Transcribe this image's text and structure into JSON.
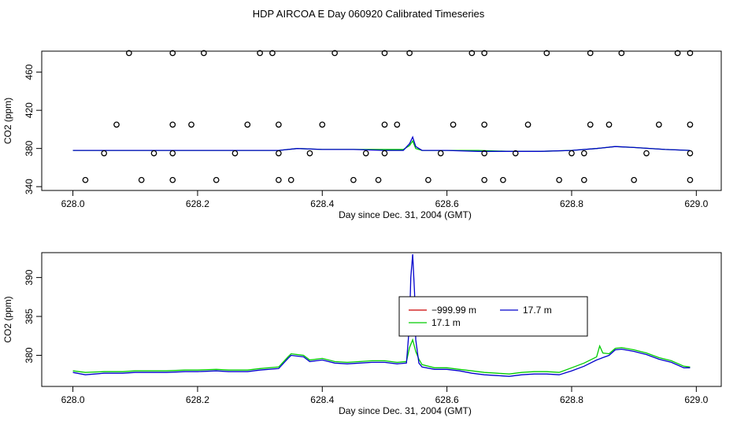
{
  "figure": {
    "title": "HDP AIRCOA E  Day 060920  Calibrated Timeseries"
  },
  "chart_data": [
    {
      "type": "scatter",
      "title": "",
      "xlabel": "Day since Dec. 31, 2004 (GMT)",
      "ylabel": "CO2 (ppm)",
      "xlim": [
        627.95,
        629.04
      ],
      "ylim": [
        336,
        482
      ],
      "xticks": [
        "628.0",
        "628.2",
        "628.4",
        "628.6",
        "628.8",
        "629.0"
      ],
      "xtick_values": [
        628.0,
        628.2,
        628.4,
        628.6,
        628.8,
        629.0
      ],
      "yticks": [
        "340",
        "380",
        "420",
        "460"
      ],
      "ytick_values": [
        340,
        380,
        420,
        460
      ],
      "points": [
        [
          628.09,
          480
        ],
        [
          628.16,
          480
        ],
        [
          628.21,
          480
        ],
        [
          628.3,
          480
        ],
        [
          628.32,
          480
        ],
        [
          628.42,
          480
        ],
        [
          628.5,
          480
        ],
        [
          628.54,
          480
        ],
        [
          628.64,
          480
        ],
        [
          628.66,
          480
        ],
        [
          628.76,
          480
        ],
        [
          628.83,
          480
        ],
        [
          628.88,
          480
        ],
        [
          628.97,
          480
        ],
        [
          628.99,
          480
        ],
        [
          628.07,
          405
        ],
        [
          628.16,
          405
        ],
        [
          628.19,
          405
        ],
        [
          628.28,
          405
        ],
        [
          628.33,
          405
        ],
        [
          628.4,
          405
        ],
        [
          628.5,
          405
        ],
        [
          628.52,
          405
        ],
        [
          628.61,
          405
        ],
        [
          628.66,
          405
        ],
        [
          628.73,
          405
        ],
        [
          628.83,
          405
        ],
        [
          628.86,
          405
        ],
        [
          628.94,
          405
        ],
        [
          628.99,
          405
        ],
        [
          628.05,
          375
        ],
        [
          628.13,
          375
        ],
        [
          628.16,
          375
        ],
        [
          628.26,
          375
        ],
        [
          628.33,
          375
        ],
        [
          628.38,
          375
        ],
        [
          628.47,
          375
        ],
        [
          628.5,
          375
        ],
        [
          628.59,
          375
        ],
        [
          628.66,
          375
        ],
        [
          628.71,
          375
        ],
        [
          628.8,
          375
        ],
        [
          628.82,
          375
        ],
        [
          628.92,
          375
        ],
        [
          628.99,
          375
        ],
        [
          628.02,
          347
        ],
        [
          628.11,
          347
        ],
        [
          628.16,
          347
        ],
        [
          628.23,
          347
        ],
        [
          628.33,
          347
        ],
        [
          628.35,
          347
        ],
        [
          628.45,
          347
        ],
        [
          628.49,
          347
        ],
        [
          628.57,
          347
        ],
        [
          628.66,
          347
        ],
        [
          628.69,
          347
        ],
        [
          628.78,
          347
        ],
        [
          628.82,
          347
        ],
        [
          628.9,
          347
        ],
        [
          628.99,
          347
        ]
      ],
      "series": [
        {
          "color": "#00cc00",
          "x": [
            628.0,
            628.05,
            628.1,
            628.15,
            628.2,
            628.25,
            628.3,
            628.33,
            628.36,
            628.4,
            628.45,
            628.5,
            628.53,
            628.54,
            628.545,
            628.55,
            628.56,
            628.6,
            628.65,
            628.7,
            628.75,
            628.8,
            628.84,
            628.87,
            628.9,
            628.95,
            628.99
          ],
          "y": [
            378,
            378,
            378,
            378,
            378,
            378,
            378,
            378,
            380,
            379,
            379,
            379,
            379,
            383,
            388,
            380,
            378,
            378,
            378,
            377,
            377,
            378,
            380,
            382,
            381,
            379,
            378
          ]
        },
        {
          "color": "#0000cc",
          "x": [
            628.0,
            628.05,
            628.1,
            628.15,
            628.2,
            628.25,
            628.3,
            628.33,
            628.36,
            628.4,
            628.45,
            628.5,
            628.53,
            628.54,
            628.545,
            628.55,
            628.56,
            628.6,
            628.65,
            628.7,
            628.75,
            628.8,
            628.84,
            628.87,
            628.9,
            628.95,
            628.99
          ],
          "y": [
            378,
            378,
            378,
            378,
            378,
            378,
            378,
            378,
            380,
            379,
            379,
            378,
            378,
            385,
            392,
            382,
            378,
            378,
            377,
            377,
            377,
            378,
            380,
            382,
            381,
            379,
            378
          ]
        }
      ]
    },
    {
      "type": "line",
      "title": "",
      "xlabel": "Day since Dec. 31, 2004 (GMT)",
      "ylabel": "CO2 (ppm)",
      "xlim": [
        627.95,
        629.04
      ],
      "ylim": [
        376.0,
        393.2
      ],
      "xticks": [
        "628.0",
        "628.2",
        "628.4",
        "628.6",
        "628.8",
        "629.0"
      ],
      "xtick_values": [
        628.0,
        628.2,
        628.4,
        628.6,
        628.8,
        629.0
      ],
      "yticks": [
        "380",
        "385",
        "390"
      ],
      "ytick_values": [
        380,
        385,
        390
      ],
      "legend": {
        "position": "center-right",
        "entries": [
          {
            "label": "−999.99 m",
            "color": "#cc0000"
          },
          {
            "label": "17.1 m",
            "color": "#00cc00"
          },
          {
            "label": "17.7 m",
            "color": "#0000cc"
          }
        ]
      },
      "series": [
        {
          "name": "17.1 m",
          "color": "#00cc00",
          "x": [
            628.0,
            628.02,
            628.05,
            628.08,
            628.1,
            628.13,
            628.15,
            628.18,
            628.2,
            628.23,
            628.25,
            628.28,
            628.3,
            628.33,
            628.345,
            628.35,
            628.37,
            628.38,
            628.4,
            628.42,
            628.44,
            628.46,
            628.48,
            628.5,
            628.52,
            628.535,
            628.54,
            628.545,
            628.55,
            628.555,
            628.56,
            628.58,
            628.6,
            628.62,
            628.64,
            628.66,
            628.68,
            628.7,
            628.72,
            628.74,
            628.76,
            628.78,
            628.8,
            628.82,
            628.84,
            628.845,
            628.85,
            628.86,
            628.87,
            628.88,
            628.9,
            628.92,
            628.94,
            628.96,
            628.98,
            628.99
          ],
          "y": [
            378.0,
            377.8,
            377.9,
            377.9,
            378.0,
            378.0,
            378.0,
            378.1,
            378.1,
            378.2,
            378.1,
            378.1,
            378.3,
            378.5,
            379.8,
            380.2,
            380.0,
            379.4,
            379.6,
            379.2,
            379.1,
            379.2,
            379.3,
            379.3,
            379.1,
            379.2,
            381.0,
            382.0,
            380.5,
            379.5,
            378.8,
            378.4,
            378.4,
            378.2,
            378.0,
            377.8,
            377.7,
            377.6,
            377.8,
            377.9,
            377.9,
            377.8,
            378.4,
            379.0,
            379.8,
            381.2,
            380.3,
            380.2,
            380.9,
            381.0,
            380.7,
            380.3,
            379.7,
            379.3,
            378.6,
            378.5
          ]
        },
        {
          "name": "17.7 m",
          "color": "#0000cc",
          "x": [
            628.0,
            628.02,
            628.05,
            628.08,
            628.1,
            628.13,
            628.15,
            628.18,
            628.2,
            628.23,
            628.25,
            628.28,
            628.3,
            628.33,
            628.345,
            628.35,
            628.37,
            628.38,
            628.4,
            628.42,
            628.44,
            628.46,
            628.48,
            628.5,
            628.52,
            628.535,
            628.54,
            628.542,
            628.545,
            628.548,
            628.55,
            628.555,
            628.56,
            628.58,
            628.6,
            628.62,
            628.64,
            628.66,
            628.68,
            628.7,
            628.72,
            628.74,
            628.76,
            628.78,
            628.8,
            628.82,
            628.84,
            628.85,
            628.86,
            628.87,
            628.88,
            628.9,
            628.92,
            628.94,
            628.96,
            628.98,
            628.99
          ],
          "y": [
            377.8,
            377.5,
            377.7,
            377.7,
            377.8,
            377.8,
            377.8,
            377.9,
            377.9,
            378.0,
            377.9,
            377.9,
            378.1,
            378.3,
            379.6,
            380.0,
            379.8,
            379.2,
            379.4,
            379.0,
            378.9,
            379.0,
            379.1,
            379.1,
            378.9,
            379.0,
            384.0,
            390.0,
            393.0,
            388.0,
            382.0,
            379.0,
            378.5,
            378.2,
            378.2,
            378.0,
            377.7,
            377.5,
            377.4,
            377.3,
            377.5,
            377.6,
            377.6,
            377.5,
            378.0,
            378.6,
            379.4,
            379.7,
            380.0,
            380.7,
            380.8,
            380.5,
            380.1,
            379.5,
            379.1,
            378.4,
            378.4
          ]
        }
      ]
    }
  ]
}
